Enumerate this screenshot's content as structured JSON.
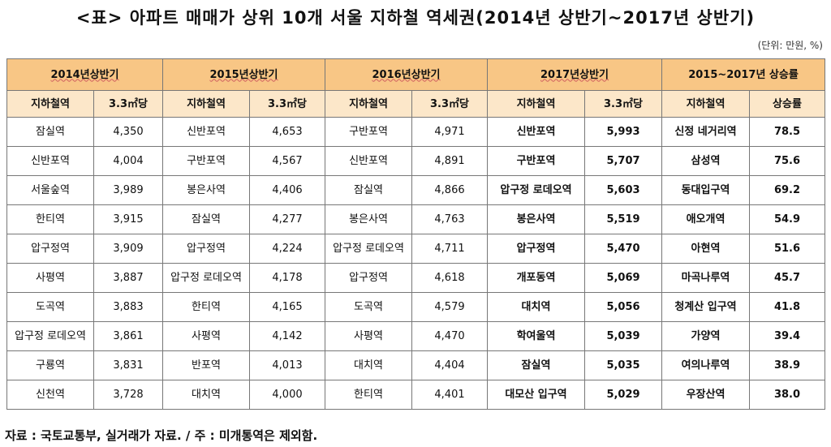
{
  "title": "<표> 아파트 매매가 상위 10개 서울 지하철 역세권(2014년 상반기~2017년 상반기)",
  "unit": "(단위: 만원, %)",
  "headers": {
    "periods": [
      "2014년상반기",
      "2015년상반기",
      "2016년상반기",
      "2017년상반기"
    ],
    "growth": "2015~2017년 상승률",
    "station": "지하철역",
    "price": "3.3㎡당",
    "rate": "상승률"
  },
  "rows": [
    {
      "s14": "잠실역",
      "p14": "4,350",
      "s15": "신반포역",
      "p15": "4,653",
      "s16": "구반포역",
      "p16": "4,971",
      "s17": "신반포역",
      "p17": "5,993",
      "sg": "신정 네거리역",
      "rg": "78.5"
    },
    {
      "s14": "신반포역",
      "p14": "4,004",
      "s15": "구반포역",
      "p15": "4,567",
      "s16": "신반포역",
      "p16": "4,891",
      "s17": "구반포역",
      "p17": "5,707",
      "sg": "삼성역",
      "rg": "75.6"
    },
    {
      "s14": "서울숲역",
      "p14": "3,989",
      "s15": "봉은사역",
      "p15": "4,406",
      "s16": "잠실역",
      "p16": "4,866",
      "s17": "압구정 로데오역",
      "p17": "5,603",
      "sg": "동대입구역",
      "rg": "69.2"
    },
    {
      "s14": "한티역",
      "p14": "3,915",
      "s15": "잠실역",
      "p15": "4,277",
      "s16": "봉은사역",
      "p16": "4,763",
      "s17": "봉은사역",
      "p17": "5,519",
      "sg": "애오개역",
      "rg": "54.9"
    },
    {
      "s14": "압구정역",
      "p14": "3,909",
      "s15": "압구정역",
      "p15": "4,224",
      "s16": "압구정 로데오역",
      "p16": "4,711",
      "s17": "압구정역",
      "p17": "5,470",
      "sg": "아현역",
      "rg": "51.6"
    },
    {
      "s14": "사평역",
      "p14": "3,887",
      "s15": "압구정 로데오역",
      "p15": "4,178",
      "s16": "압구정역",
      "p16": "4,618",
      "s17": "개포동역",
      "p17": "5,069",
      "sg": "마곡나루역",
      "rg": "45.7"
    },
    {
      "s14": "도곡역",
      "p14": "3,883",
      "s15": "한티역",
      "p15": "4,165",
      "s16": "도곡역",
      "p16": "4,579",
      "s17": "대치역",
      "p17": "5,056",
      "sg": "청계산 입구역",
      "rg": "41.8"
    },
    {
      "s14": "압구정 로데오역",
      "p14": "3,861",
      "s15": "사평역",
      "p15": "4,142",
      "s16": "사평역",
      "p16": "4,470",
      "s17": "학여울역",
      "p17": "5,039",
      "sg": "가양역",
      "rg": "39.4"
    },
    {
      "s14": "구룡역",
      "p14": "3,831",
      "s15": "반포역",
      "p15": "4,013",
      "s16": "대치역",
      "p16": "4,404",
      "s17": "잠실역",
      "p17": "5,035",
      "sg": "여의나루역",
      "rg": "38.9"
    },
    {
      "s14": "신천역",
      "p14": "3,728",
      "s15": "대치역",
      "p15": "4,000",
      "s16": "한티역",
      "p16": "4,401",
      "s17": "대모산 입구역",
      "p17": "5,029",
      "sg": "우장산역",
      "rg": "38.0"
    }
  ],
  "footer": "자료 : 국토교통부, 실거래가 자료. / 주 : 미개통역은 제외함."
}
